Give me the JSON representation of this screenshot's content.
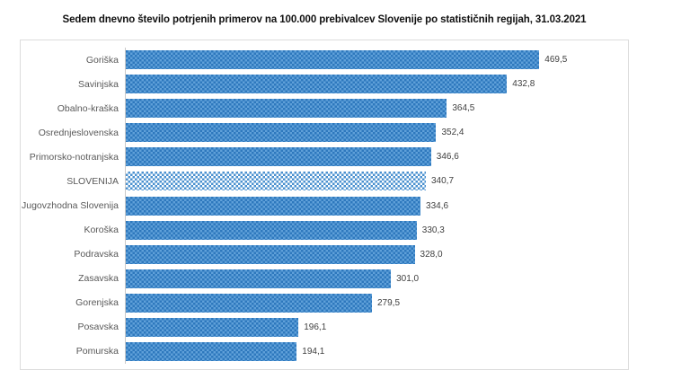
{
  "title": "Sedem dnevno število potrjenih primerov na 100.000  prebivalcev Slovenije po statističnih regijah, 31.03.2021",
  "chart_data": {
    "type": "bar",
    "orientation": "horizontal",
    "title": "Sedem dnevno število potrjenih primerov na 100.000  prebivalcev Slovenije po statističnih regijah, 31.03.2021",
    "xlabel": "",
    "ylabel": "",
    "xlim": [
      0,
      560
    ],
    "grid": false,
    "legend": false,
    "data_labels": true,
    "categories": [
      "Goriška",
      "Savinjska",
      "Obalno-kraška",
      "Osrednjeslovenska",
      "Primorsko-notranjska",
      "SLOVENIJA",
      "Jugovzhodna Slovenija",
      "Koroška",
      "Podravska",
      "Zasavska",
      "Gorenjska",
      "Posavska",
      "Pomurska"
    ],
    "values": [
      469.5,
      432.8,
      364.5,
      352.4,
      346.6,
      340.7,
      334.6,
      330.3,
      328.0,
      301.0,
      279.5,
      196.1,
      194.1
    ],
    "value_labels": [
      "469,5",
      "432,8",
      "364,5",
      "352,4",
      "346,6",
      "340,7",
      "334,6",
      "330,3",
      "328,0",
      "301,0",
      "279,5",
      "196,1",
      "194,1"
    ],
    "highlight_category": "SLOVENIJA",
    "bar_style": "dotted-pattern-fill",
    "colors": {
      "bar_fill": "#2e78bd",
      "bar_dot": "#5fa0d9",
      "highlight_fill": "#ffffff",
      "highlight_dot": "#4a90cf",
      "plot_border": "#dcdcdc",
      "axis_line": "#c9c9c9",
      "category_label": "#595959",
      "value_label": "#404040",
      "title_text": "#111111"
    }
  }
}
